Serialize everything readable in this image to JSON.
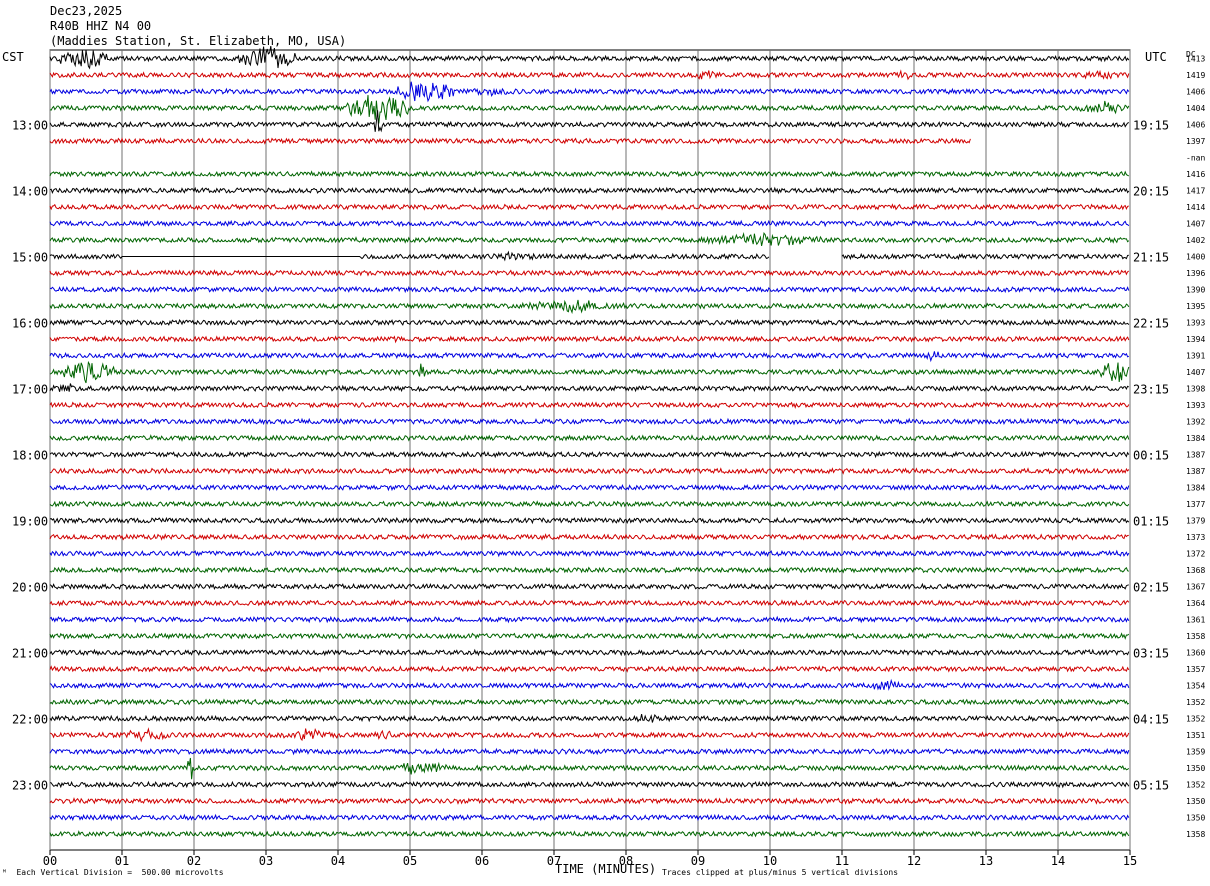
{
  "header": {
    "date": "Dec23,2025",
    "station_code": "R40B HHZ N4 00",
    "station_name": "(Maddies Station, St. Elizabeth, MO, USA)"
  },
  "axes": {
    "left_tz": "CST",
    "right_tz": "UTC",
    "right_col_header": "DC",
    "x_title": "TIME (MINUTES)"
  },
  "footer": {
    "scale": "Each Vertical Division =  500.00 microvolts",
    "clip": "Traces clipped at plus/minus 5 vertical divisions"
  },
  "colors": {
    "trace_cycle": [
      "#000000",
      "#d00000",
      "#0000e0",
      "#006400"
    ],
    "grid": "#707070"
  },
  "chart_data": {
    "type": "line",
    "title": "R40B HHZ N4 00",
    "xlabel": "TIME (MINUTES)",
    "xlim": [
      0,
      15
    ],
    "x_ticks": [
      "00",
      "01",
      "02",
      "03",
      "04",
      "05",
      "06",
      "07",
      "08",
      "09",
      "10",
      "11",
      "12",
      "13",
      "14",
      "15"
    ],
    "left_hour_labels": [
      {
        "row": 4,
        "label": "13:00"
      },
      {
        "row": 8,
        "label": "14:00"
      },
      {
        "row": 12,
        "label": "15:00"
      },
      {
        "row": 16,
        "label": "16:00"
      },
      {
        "row": 20,
        "label": "17:00"
      },
      {
        "row": 24,
        "label": "18:00"
      },
      {
        "row": 28,
        "label": "19:00"
      },
      {
        "row": 32,
        "label": "20:00"
      },
      {
        "row": 36,
        "label": "21:00"
      },
      {
        "row": 40,
        "label": "22:00"
      },
      {
        "row": 44,
        "label": "23:00"
      }
    ],
    "right_hour_labels": [
      {
        "row": 4,
        "label": "19:15"
      },
      {
        "row": 8,
        "label": "20:15"
      },
      {
        "row": 12,
        "label": "21:15"
      },
      {
        "row": 16,
        "label": "22:15"
      },
      {
        "row": 20,
        "label": "23:15"
      },
      {
        "row": 24,
        "label": "00:15"
      },
      {
        "row": 28,
        "label": "01:15"
      },
      {
        "row": 32,
        "label": "02:15"
      },
      {
        "row": 36,
        "label": "03:15"
      },
      {
        "row": 40,
        "label": "04:15"
      },
      {
        "row": 44,
        "label": "05:15"
      }
    ],
    "dc_offsets": [
      "1413",
      "1419",
      "1406",
      "1404",
      "1406",
      "1397",
      "-nan",
      "1416",
      "1417",
      "1414",
      "1407",
      "1402",
      "1400",
      "1396",
      "1390",
      "1395",
      "1393",
      "1394",
      "1391",
      "1407",
      "1398",
      "1393",
      "1392",
      "1384",
      "1387",
      "1387",
      "1384",
      "1377",
      "1379",
      "1373",
      "1372",
      "1368",
      "1367",
      "1364",
      "1361",
      "1358",
      "1360",
      "1357",
      "1354",
      "1352",
      "1352",
      "1351",
      "1359",
      "1350",
      "1352",
      "1350",
      "1350",
      "1358"
    ],
    "events": [
      {
        "row": 0,
        "start_min": 0.1,
        "end_min": 0.8,
        "amp": 9
      },
      {
        "row": 0,
        "start_min": 2.6,
        "end_min": 3.4,
        "amp": 10
      },
      {
        "row": 1,
        "start_min": 8.9,
        "end_min": 9.3,
        "amp": 4
      },
      {
        "row": 1,
        "start_min": 11.7,
        "end_min": 12.0,
        "amp": 4
      },
      {
        "row": 1,
        "start_min": 14.2,
        "end_min": 15.0,
        "amp": 4
      },
      {
        "row": 2,
        "start_min": 4.8,
        "end_min": 5.6,
        "amp": 10
      },
      {
        "row": 2,
        "start_min": 5.6,
        "end_min": 6.7,
        "amp": 3
      },
      {
        "row": 3,
        "start_min": 4.1,
        "end_min": 5.0,
        "amp": 12
      },
      {
        "row": 3,
        "start_min": 14.3,
        "end_min": 15.0,
        "amp": 5
      },
      {
        "row": 4,
        "start_min": 4.5,
        "end_min": 4.6,
        "amp": 12
      },
      {
        "row": 11,
        "start_min": 9.0,
        "end_min": 10.8,
        "amp": 5
      },
      {
        "row": 12,
        "start_min": 6.0,
        "end_min": 6.8,
        "amp": 4
      },
      {
        "row": 15,
        "start_min": 6.5,
        "end_min": 8.0,
        "amp": 5
      },
      {
        "row": 17,
        "start_min": 4.7,
        "end_min": 4.9,
        "amp": 3
      },
      {
        "row": 18,
        "start_min": 12.1,
        "end_min": 12.4,
        "amp": 4
      },
      {
        "row": 19,
        "start_min": 0.2,
        "end_min": 0.9,
        "amp": 10
      },
      {
        "row": 19,
        "start_min": 5.1,
        "end_min": 5.2,
        "amp": 8
      },
      {
        "row": 19,
        "start_min": 14.6,
        "end_min": 15.0,
        "amp": 10
      },
      {
        "row": 20,
        "start_min": 0.0,
        "end_min": 0.4,
        "amp": 5
      },
      {
        "row": 38,
        "start_min": 11.4,
        "end_min": 11.8,
        "amp": 5
      },
      {
        "row": 40,
        "start_min": 8.1,
        "end_min": 8.5,
        "amp": 4
      },
      {
        "row": 41,
        "start_min": 1.0,
        "end_min": 1.7,
        "amp": 5
      },
      {
        "row": 41,
        "start_min": 3.2,
        "end_min": 4.0,
        "amp": 5
      },
      {
        "row": 41,
        "start_min": 4.5,
        "end_min": 4.8,
        "amp": 4
      },
      {
        "row": 43,
        "start_min": 1.9,
        "end_min": 2.0,
        "amp": 10
      },
      {
        "row": 43,
        "start_min": 4.8,
        "end_min": 5.5,
        "amp": 6
      }
    ],
    "gaps": [
      {
        "row": 5,
        "start_min": 12.8,
        "end_min": 15.0
      },
      {
        "row": 6,
        "start_min": 0.0,
        "end_min": 15.0
      },
      {
        "row": 12,
        "start_min": 1.0,
        "end_min": 4.3,
        "flat": true
      },
      {
        "row": 12,
        "start_min": 10.0,
        "end_min": 11.0
      }
    ]
  }
}
